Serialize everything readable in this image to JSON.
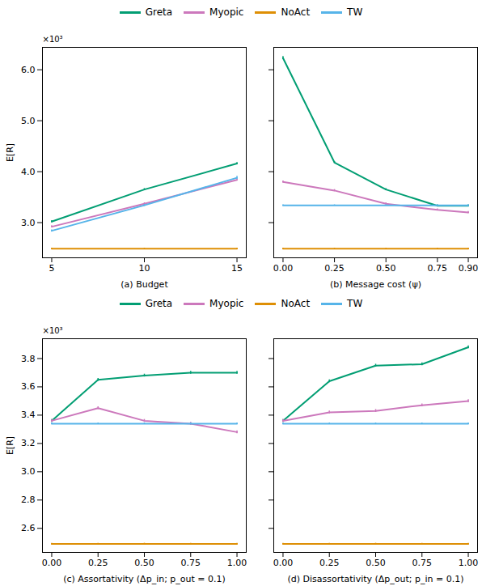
{
  "chart_data": [
    {
      "type": "line",
      "xlabel": "(a) Budget",
      "ylabel": "E[R]",
      "annotations": [
        "×10³"
      ],
      "x": [
        5,
        10,
        15
      ],
      "xlim": [
        4.5,
        15.5
      ],
      "xticks": [
        5,
        10,
        15
      ],
      "ylim": [
        2.31,
        6.44
      ],
      "yticks": [
        {
          "value": 3,
          "label": "3.0"
        },
        {
          "value": 4,
          "label": "4.0"
        },
        {
          "value": 5,
          "label": "5.0"
        },
        {
          "value": 6,
          "label": "6.0"
        }
      ],
      "grid": false,
      "series": [
        {
          "name": "Greta",
          "color": "#029e73",
          "values": [
            3.02,
            3.65,
            4.16
          ],
          "errors": [
            0.02,
            0.02,
            0.02
          ]
        },
        {
          "name": "Myopic",
          "color": "#cc78bc",
          "values": [
            2.92,
            3.37,
            3.84
          ],
          "errors": [
            0.02,
            0.02,
            0.02
          ]
        },
        {
          "name": "NoAct",
          "color": "#de8f05",
          "values": [
            2.49,
            2.49,
            2.49
          ],
          "errors": [
            0.01,
            0.01,
            0.01
          ]
        },
        {
          "name": "TW",
          "color": "#56b4e9",
          "values": [
            2.84,
            3.34,
            3.88
          ],
          "errors": [
            0.02,
            0.02,
            0.03
          ]
        }
      ]
    },
    {
      "type": "line",
      "xlabel": "(b) Message cost (ψ)",
      "tick_labels": "x",
      "x": [
        0,
        0.25,
        0.5,
        0.75,
        0.9
      ],
      "xlim": [
        -0.045,
        0.945
      ],
      "xticks": [
        {
          "value": 0,
          "label": "0.00"
        },
        {
          "value": 0.25,
          "label": "0.25"
        },
        {
          "value": 0.5,
          "label": "0.50"
        },
        {
          "value": 0.75,
          "label": "0.75"
        },
        {
          "value": 0.9,
          "label": "0.90"
        }
      ],
      "ylim": [
        2.31,
        6.44
      ],
      "yticks": [
        3,
        4,
        5,
        6
      ],
      "grid": false,
      "series": [
        {
          "name": "Greta",
          "color": "#029e73",
          "values": [
            6.23,
            4.18,
            3.65,
            3.33,
            3.33
          ],
          "errors": [
            0.03,
            0.02,
            0.02,
            0.02,
            0.02
          ]
        },
        {
          "name": "Myopic",
          "color": "#cc78bc",
          "values": [
            3.8,
            3.63,
            3.37,
            3.25,
            3.2
          ],
          "errors": [
            0.02,
            0.02,
            0.02,
            0.02,
            0.02
          ]
        },
        {
          "name": "NoAct",
          "color": "#de8f05",
          "values": [
            2.49,
            2.49,
            2.49,
            2.49,
            2.49
          ],
          "errors": [
            0.01,
            0.01,
            0.01,
            0.01,
            0.01
          ]
        },
        {
          "name": "TW",
          "color": "#56b4e9",
          "values": [
            3.34,
            3.34,
            3.34,
            3.34,
            3.34
          ],
          "errors": [
            0.01,
            0.01,
            0.01,
            0.01,
            0.01
          ]
        }
      ]
    },
    {
      "type": "line",
      "xlabel": "(c) Assortativity (Δp_in; p_out = 0.1)",
      "ylabel": "E[R]",
      "annotations": [
        "×10³"
      ],
      "x": [
        0,
        0.25,
        0.5,
        0.75,
        1
      ],
      "xlim": [
        -0.05,
        1.05
      ],
      "xticks": [
        {
          "value": 0,
          "label": "0.00"
        },
        {
          "value": 0.25,
          "label": "0.25"
        },
        {
          "value": 0.5,
          "label": "0.50"
        },
        {
          "value": 0.75,
          "label": "0.75"
        },
        {
          "value": 1,
          "label": "1.00"
        }
      ],
      "ylim": [
        2.43,
        3.94
      ],
      "yticks": [
        2.6,
        2.8,
        {
          "value": 3,
          "label": "3.0"
        },
        3.2,
        3.4,
        3.6,
        3.8
      ],
      "grid": false,
      "series": [
        {
          "name": "Greta",
          "color": "#029e73",
          "values": [
            3.36,
            3.65,
            3.68,
            3.7,
            3.7
          ],
          "errors": [
            0.01,
            0.01,
            0.01,
            0.01,
            0.01
          ]
        },
        {
          "name": "Myopic",
          "color": "#cc78bc",
          "values": [
            3.36,
            3.45,
            3.36,
            3.34,
            3.28
          ],
          "errors": [
            0.01,
            0.01,
            0.01,
            0.01,
            0.01
          ]
        },
        {
          "name": "NoAct",
          "color": "#de8f05",
          "values": [
            2.49,
            2.49,
            2.49,
            2.49,
            2.49
          ],
          "errors": [
            0.005,
            0.005,
            0.005,
            0.005,
            0.005
          ]
        },
        {
          "name": "TW",
          "color": "#56b4e9",
          "values": [
            3.34,
            3.34,
            3.34,
            3.34,
            3.34
          ],
          "errors": [
            0.005,
            0.005,
            0.005,
            0.005,
            0.005
          ]
        }
      ]
    },
    {
      "type": "line",
      "xlabel": "(d) Disassortativity (Δp_out; p_in = 0.1)",
      "tick_labels": "x",
      "x": [
        0,
        0.25,
        0.5,
        0.75,
        1
      ],
      "xlim": [
        -0.05,
        1.05
      ],
      "xticks": [
        {
          "value": 0,
          "label": "0.00"
        },
        {
          "value": 0.25,
          "label": "0.25"
        },
        {
          "value": 0.5,
          "label": "0.50"
        },
        {
          "value": 0.75,
          "label": "0.75"
        },
        {
          "value": 1,
          "label": "1.00"
        }
      ],
      "ylim": [
        2.43,
        3.94
      ],
      "yticks": [
        2.6,
        2.8,
        3,
        3.2,
        3.4,
        3.6,
        3.8
      ],
      "grid": false,
      "series": [
        {
          "name": "Greta",
          "color": "#029e73",
          "values": [
            3.36,
            3.64,
            3.75,
            3.76,
            3.88
          ],
          "errors": [
            0.01,
            0.01,
            0.01,
            0.01,
            0.01
          ]
        },
        {
          "name": "Myopic",
          "color": "#cc78bc",
          "values": [
            3.36,
            3.42,
            3.43,
            3.47,
            3.5
          ],
          "errors": [
            0.01,
            0.01,
            0.01,
            0.01,
            0.01
          ]
        },
        {
          "name": "NoAct",
          "color": "#de8f05",
          "values": [
            2.49,
            2.49,
            2.49,
            2.49,
            2.49
          ],
          "errors": [
            0.005,
            0.005,
            0.005,
            0.005,
            0.005
          ]
        },
        {
          "name": "TW",
          "color": "#56b4e9",
          "values": [
            3.34,
            3.34,
            3.34,
            3.34,
            3.34
          ],
          "errors": [
            0.005,
            0.005,
            0.005,
            0.005,
            0.005
          ]
        }
      ]
    }
  ]
}
